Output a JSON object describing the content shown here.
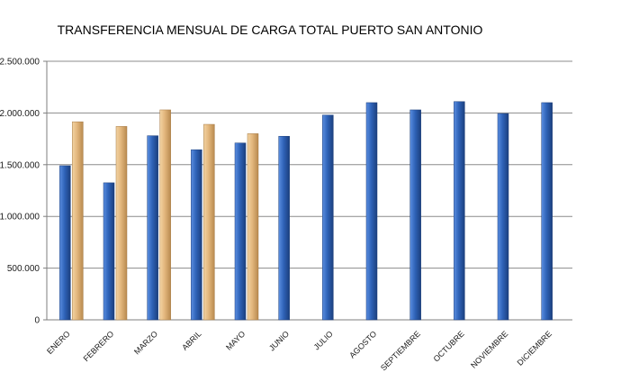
{
  "chart_data": {
    "type": "bar",
    "title": "TRANSFERENCIA  MENSUAL DE CARGA  TOTAL PUERTO SAN ANTONIO",
    "categories": [
      "ENERO",
      "FEBRERO",
      "MARZO",
      "ABRIL",
      "MAYO",
      "JUNIO",
      "JULIO",
      "AGOSTO",
      "SEPTIEMBRE",
      "OCTUBRE",
      "NOVIEMBRE",
      "DICIEMBRE"
    ],
    "series": [
      {
        "color": "#2f63b8",
        "values": [
          1490000,
          1325000,
          1780000,
          1645000,
          1710000,
          1775000,
          1980000,
          2100000,
          2030000,
          2110000,
          1995000,
          2100000
        ]
      },
      {
        "color": "#e2b67c",
        "values": [
          1915000,
          1870000,
          2030000,
          1890000,
          1800000,
          null,
          null,
          null,
          null,
          null,
          null,
          null
        ]
      }
    ],
    "ylim": [
      0,
      2500000
    ],
    "yticks": [
      0,
      500000,
      1000000,
      1500000,
      2000000,
      2500000
    ],
    "ytick_labels": [
      "0",
      "500.000",
      "1.000.000",
      "1.500.000",
      "2.000.000",
      "2.500.000"
    ],
    "grid": true,
    "legend": "none",
    "xlabel": "",
    "ylabel": ""
  }
}
